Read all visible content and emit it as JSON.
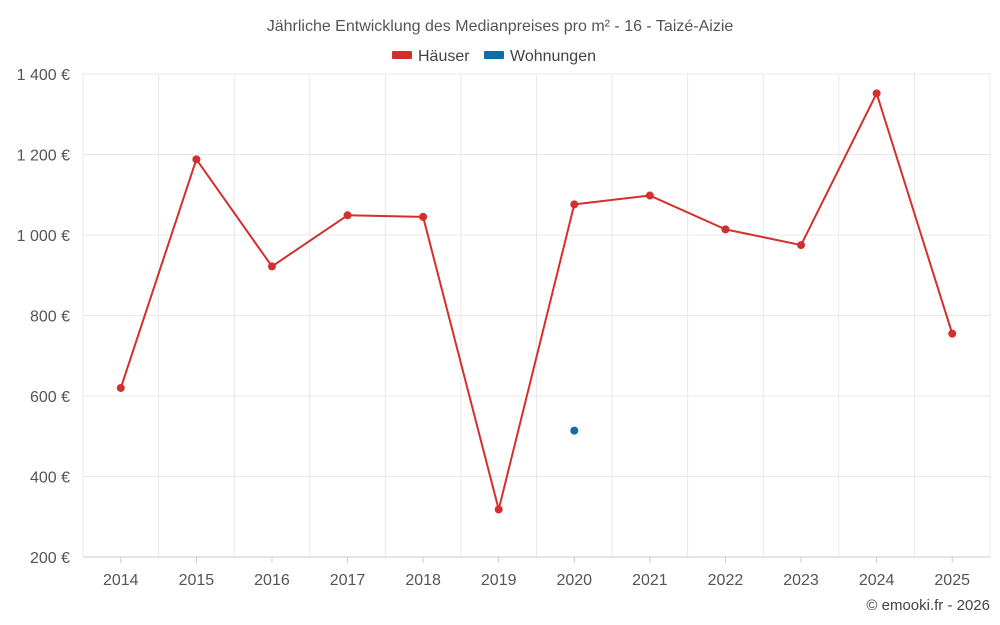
{
  "chart_data": {
    "type": "line",
    "title": "Jährliche Entwicklung des Medianpreises pro m² - 16 - Taizé-Aizie",
    "categories": [
      "2014",
      "2015",
      "2016",
      "2017",
      "2018",
      "2019",
      "2020",
      "2021",
      "2022",
      "2023",
      "2024",
      "2025"
    ],
    "series": [
      {
        "name": "Häuser",
        "color": "#d32f2f",
        "values": [
          620,
          1188,
          922,
          1049,
          1045,
          318,
          1076,
          1098,
          1014,
          975,
          1352,
          755
        ]
      },
      {
        "name": "Wohnungen",
        "color": "#0d6ea8",
        "values": [
          null,
          null,
          null,
          null,
          null,
          null,
          514,
          null,
          null,
          null,
          null,
          null
        ]
      }
    ],
    "yticks": [
      200,
      400,
      600,
      800,
      1000,
      1200,
      1400
    ],
    "ytick_labels": [
      "200 €",
      "400 €",
      "600 €",
      "800 €",
      "1 000 €",
      "1 200 €",
      "1 400 €"
    ],
    "ylim": [
      200,
      1400
    ],
    "xlabel": "",
    "ylabel": "",
    "grid": true,
    "legend_position": "top-center"
  },
  "credit": "© emooki.fr - 2026"
}
